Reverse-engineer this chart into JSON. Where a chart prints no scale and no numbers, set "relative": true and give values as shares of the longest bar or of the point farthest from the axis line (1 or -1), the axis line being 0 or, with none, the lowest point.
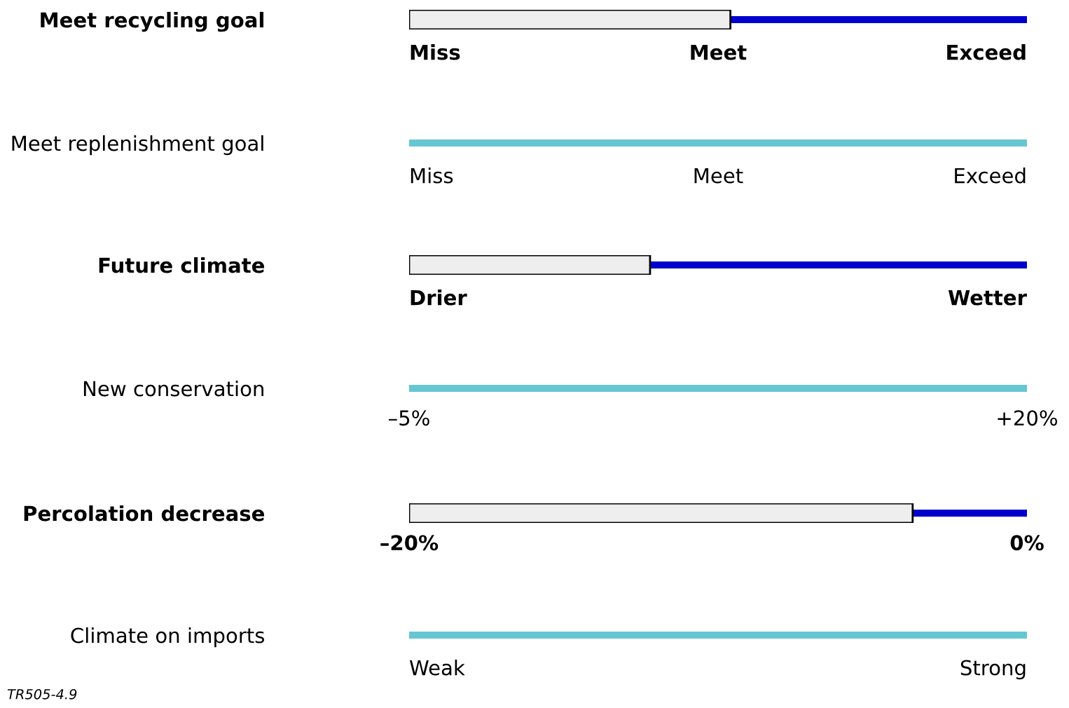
{
  "chart_data": [
    {
      "type": "bar",
      "orientation": "horizontal",
      "relative": true,
      "categories": [
        "Meet recycling goal"
      ],
      "series": [
        {
          "color": "#0000cc",
          "values": [
            1
          ]
        },
        {
          "color": "#eeeeee",
          "values": [
            0.52
          ]
        }
      ],
      "annotations": [
        "Miss",
        "Meet",
        "Exceed"
      ]
    },
    {
      "type": "bar",
      "orientation": "horizontal",
      "relative": true,
      "categories": [
        "Meet replenishment goal"
      ],
      "series": [
        {
          "color": "#66c6d2",
          "values": [
            1
          ]
        }
      ],
      "annotations": [
        "Miss",
        "Meet",
        "Exceed"
      ]
    },
    {
      "type": "bar",
      "orientation": "horizontal",
      "relative": true,
      "categories": [
        "Future climate"
      ],
      "series": [
        {
          "color": "#0000cc",
          "values": [
            1
          ]
        },
        {
          "color": "#eeeeee",
          "values": [
            0.39
          ]
        }
      ],
      "annotations": [
        "Drier",
        "Wetter"
      ]
    },
    {
      "type": "bar",
      "orientation": "horizontal",
      "categories": [
        "New conservation"
      ],
      "series": [
        {
          "color": "#66c6d2",
          "base": [
            -5
          ],
          "values": [
            25
          ]
        }
      ],
      "xlim": [
        -5,
        20
      ],
      "xticks": [
        {
          "value": -5,
          "label": "–5%"
        },
        {
          "value": 20,
          "label": "+20%"
        }
      ]
    },
    {
      "type": "bar",
      "orientation": "horizontal",
      "categories": [
        "Percolation decrease"
      ],
      "series": [
        {
          "color": "#0000cc",
          "base": [
            -20
          ],
          "values": [
            20
          ]
        },
        {
          "color": "#eeeeee",
          "base": [
            -20
          ],
          "values": [
            16.3
          ]
        }
      ],
      "xlim": [
        -20,
        0
      ],
      "xticks": [
        {
          "value": -20,
          "label": "–20%"
        },
        {
          "value": 0,
          "label": "0%"
        }
      ]
    },
    {
      "type": "bar",
      "orientation": "horizontal",
      "relative": true,
      "categories": [
        "Climate on imports"
      ],
      "series": [
        {
          "color": "#66c6d2",
          "values": [
            1
          ]
        }
      ],
      "annotations": [
        "Weak",
        "Strong"
      ]
    },
    {
      "type": "other",
      "annotations": [
        "TR505-4.9"
      ]
    }
  ]
}
